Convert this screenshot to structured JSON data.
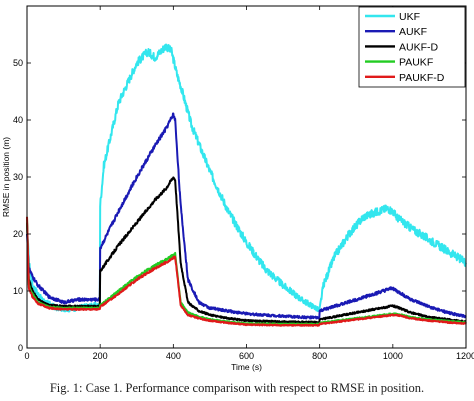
{
  "caption": "Fig. 1: Case 1. Performance comparison with respect to RMSE in position.",
  "chart_data": {
    "type": "line",
    "xlabel": "Time (s)",
    "ylabel": "RMSE in position (m)",
    "xlim": [
      0,
      1200
    ],
    "ylim": [
      0,
      60
    ],
    "xticks": [
      0,
      200,
      400,
      600,
      800,
      1000,
      1200
    ],
    "yticks": [
      0,
      10,
      20,
      30,
      40,
      50
    ],
    "grid": false,
    "legend_position": "top-right",
    "series": [
      {
        "name": "UKF",
        "color": "#33e6ee",
        "noise": 0.7,
        "x": [
          0,
          5,
          15,
          40,
          80,
          120,
          150,
          190,
          199,
          200,
          210,
          250,
          300,
          330,
          350,
          380,
          395,
          410,
          420,
          450,
          500,
          550,
          600,
          650,
          700,
          750,
          790,
          799,
          800,
          810,
          840,
          880,
          920,
          960,
          985,
          1000,
          1010,
          1050,
          1100,
          1150,
          1200
        ],
        "y": [
          22,
          15,
          11,
          8.5,
          7,
          6.8,
          7.2,
          7.5,
          7.3,
          25,
          32,
          43,
          50,
          52,
          51,
          53,
          52,
          48,
          46,
          39,
          31,
          24,
          18.5,
          14,
          11,
          8.5,
          7,
          6.5,
          6.8,
          11,
          16,
          20,
          23,
          24,
          24.5,
          24,
          23,
          21,
          19,
          17,
          15
        ]
      },
      {
        "name": "AUKF",
        "color": "#1a1ab4",
        "noise": 0.35,
        "x": [
          0,
          5,
          15,
          30,
          60,
          100,
          140,
          199,
          200,
          250,
          300,
          350,
          380,
          400,
          405,
          420,
          440,
          470,
          500,
          550,
          600,
          650,
          700,
          750,
          799,
          800,
          850,
          900,
          950,
          1000,
          1010,
          1050,
          1100,
          1150,
          1200
        ],
        "y": [
          20,
          14,
          12.5,
          11,
          9,
          8,
          8.5,
          8.5,
          17.5,
          24,
          30,
          35.5,
          38.5,
          41,
          40,
          25,
          12,
          8,
          7,
          6.5,
          6,
          5.8,
          5.6,
          5.4,
          5.3,
          6.5,
          7.5,
          8.5,
          9.5,
          10.5,
          10,
          8.5,
          7.2,
          6.2,
          5.5
        ]
      },
      {
        "name": "AUKF-D",
        "color": "#000000",
        "noise": 0.25,
        "x": [
          0,
          5,
          15,
          30,
          60,
          100,
          150,
          199,
          200,
          250,
          300,
          350,
          380,
          400,
          405,
          420,
          440,
          470,
          500,
          550,
          600,
          700,
          799,
          800,
          850,
          900,
          950,
          1000,
          1010,
          1050,
          1100,
          1150,
          1200
        ],
        "y": [
          22,
          12,
          10,
          8.5,
          7.5,
          7.3,
          7.3,
          7.3,
          13.5,
          18,
          22,
          26,
          28,
          30,
          29.5,
          15,
          8,
          6.5,
          5.8,
          5.2,
          4.8,
          4.6,
          4.5,
          5,
          5.6,
          6.2,
          6.8,
          7.4,
          7.2,
          6.2,
          5.4,
          5,
          4.6
        ]
      },
      {
        "name": "PAUKF",
        "color": "#22cc22",
        "noise": 0.2,
        "x": [
          0,
          5,
          15,
          30,
          60,
          100,
          150,
          199,
          200,
          250,
          300,
          350,
          380,
          405,
          420,
          440,
          470,
          500,
          550,
          600,
          700,
          799,
          800,
          850,
          900,
          950,
          1000,
          1010,
          1050,
          1100,
          1150,
          1200
        ],
        "y": [
          23,
          11,
          9.5,
          8,
          7.2,
          7,
          7,
          7,
          7.5,
          10,
          12.5,
          14.5,
          15.5,
          16.5,
          8,
          6.2,
          5.5,
          5,
          4.6,
          4.3,
          4.2,
          4.2,
          4.4,
          4.8,
          5.2,
          5.6,
          6,
          6,
          5.4,
          5,
          4.7,
          4.5
        ]
      },
      {
        "name": "PAUKF-D",
        "color": "#e01a1a",
        "noise": 0.2,
        "x": [
          0,
          5,
          15,
          30,
          60,
          100,
          150,
          199,
          200,
          250,
          300,
          350,
          380,
          405,
          420,
          440,
          470,
          500,
          550,
          600,
          700,
          799,
          800,
          850,
          900,
          950,
          1000,
          1010,
          1050,
          1100,
          1150,
          1200
        ],
        "y": [
          23,
          10.5,
          9,
          7.8,
          7,
          6.8,
          6.8,
          6.8,
          7.2,
          9.5,
          12,
          14,
          15,
          16,
          7.5,
          5.8,
          5.2,
          4.8,
          4.4,
          4.1,
          4,
          4,
          4.2,
          4.6,
          5,
          5.4,
          5.8,
          5.8,
          5.2,
          4.8,
          4.5,
          4.3
        ]
      }
    ]
  }
}
